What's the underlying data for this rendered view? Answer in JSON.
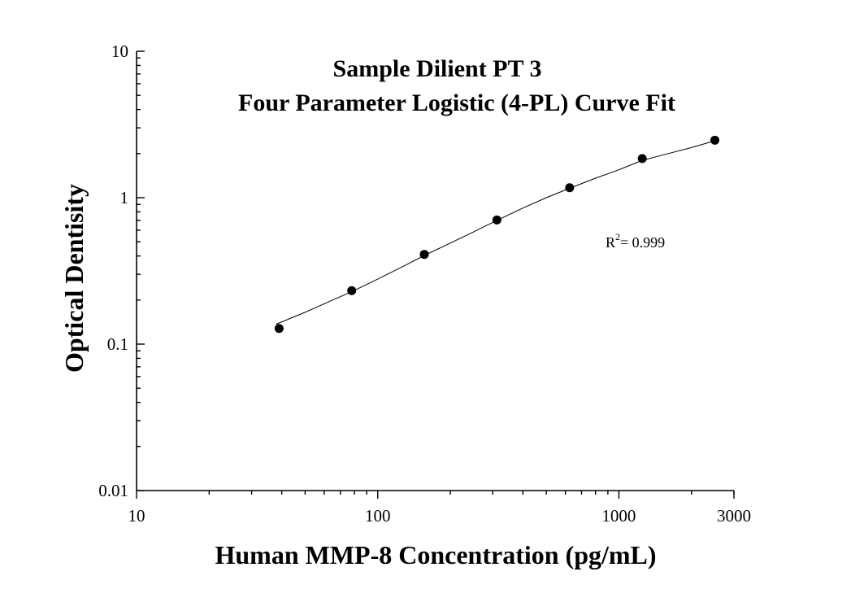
{
  "chart_data": {
    "type": "scatter",
    "title_lines": [
      "Sample Dilient PT 3",
      "Four Parameter Logistic (4-PL) Curve Fit"
    ],
    "xlabel": "Human MMP-8 Concentration (pg/mL)",
    "ylabel": "Optical Dentisity",
    "x_scale": "log",
    "y_scale": "log",
    "xlim": [
      10,
      3000
    ],
    "ylim": [
      0.01,
      10
    ],
    "x_ticks": [
      10,
      100,
      1000,
      3000
    ],
    "x_tick_labels": [
      "10",
      "100",
      "1000",
      "3000"
    ],
    "y_ticks": [
      0.01,
      0.1,
      1,
      10
    ],
    "y_tick_labels": [
      "0.01",
      "0.1",
      "1",
      "10"
    ],
    "grid": false,
    "series": [
      {
        "x": [
          39,
          78,
          156,
          312,
          625,
          1250,
          2500
        ],
        "y": [
          0.128,
          0.232,
          0.41,
          0.705,
          1.17,
          1.85,
          2.47
        ],
        "marker": "filled-circle",
        "color": "#000000"
      }
    ],
    "fit_curve": {
      "type": "4-PL",
      "x": [
        38,
        50,
        65,
        78,
        100,
        130,
        156,
        200,
        250,
        312,
        400,
        500,
        625,
        800,
        1000,
        1250,
        1600,
        2000,
        2500
      ],
      "y": [
        0.137,
        0.165,
        0.2,
        0.228,
        0.278,
        0.345,
        0.403,
        0.49,
        0.585,
        0.7,
        0.85,
        1.0,
        1.16,
        1.36,
        1.55,
        1.8,
        2.0,
        2.2,
        2.45
      ],
      "color": "#000000"
    },
    "annotation": {
      "base": "R",
      "sup": "2",
      "rest": "= 0.999"
    }
  }
}
